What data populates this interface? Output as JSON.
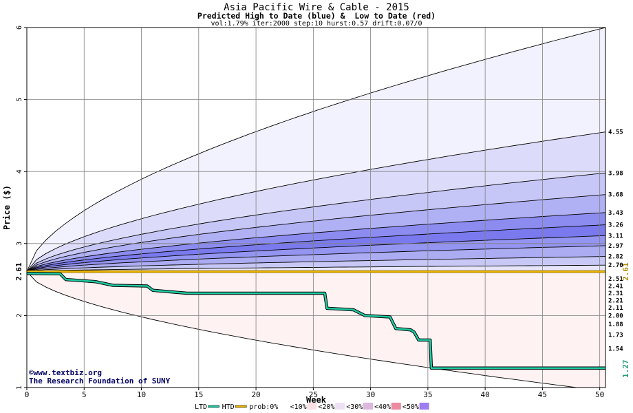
{
  "chart_data": {
    "type": "area",
    "title": "Asia Pacific Wire & Cable - 2015",
    "subtitle": "Predicted High to Date (blue) &  Low to Date (red)",
    "params_line": "vol:1.79% iter:2000 step:10 hurst:0.57 drift:0.07/0",
    "xlabel": "Week",
    "ylabel": "Price ($)",
    "xlim": [
      0,
      50.5
    ],
    "ylim": [
      1,
      6
    ],
    "x_ticks": [
      0,
      5,
      10,
      15,
      20,
      25,
      30,
      35,
      40,
      45,
      50
    ],
    "y_ticks": [
      1,
      2,
      3,
      4,
      5,
      6
    ],
    "grid": true,
    "start_price": 2.61,
    "start_price_label": "2.61",
    "last_ltd_label": "1.27",
    "right_price_label": "2.61",
    "high_bands": [
      {
        "end": 6.0,
        "fill": "#f2f2ff",
        "label": ""
      },
      {
        "end": 4.55,
        "fill": "#dcdcfa",
        "label": "4.55"
      },
      {
        "end": 3.98,
        "fill": "#c6c6f7",
        "label": "3.98"
      },
      {
        "end": 3.68,
        "fill": "#b0b0f4",
        "label": "3.68"
      },
      {
        "end": 3.43,
        "fill": "#8c8cf0",
        "label": "3.43"
      },
      {
        "end": 3.26,
        "fill": "#7a7aee",
        "label": "3.26"
      },
      {
        "end": 3.11,
        "fill": "#9494f1",
        "label": "3.11"
      },
      {
        "end": 2.97,
        "fill": "#acacf3",
        "label": "2.97"
      },
      {
        "end": 2.82,
        "fill": "#c8c8f6",
        "label": "2.82"
      },
      {
        "end": 2.7,
        "fill": "#e6e6fb",
        "label": "2.70"
      }
    ],
    "low_bands": [
      {
        "end": 2.51,
        "fill": "#fde6e6",
        "label": "2.51"
      },
      {
        "end": 2.41,
        "fill": "#fbcaca",
        "label": "2.41"
      },
      {
        "end": 2.31,
        "fill": "#f9aeae",
        "label": "2.31"
      },
      {
        "end": 2.21,
        "fill": "#f79494",
        "label": "2.21"
      },
      {
        "end": 2.11,
        "fill": "#f58a8a",
        "label": "2.11"
      },
      {
        "end": 2.0,
        "fill": "#f7a0a0",
        "label": "2.00"
      },
      {
        "end": 1.88,
        "fill": "#f9b8b8",
        "label": "1.88"
      },
      {
        "end": 1.73,
        "fill": "#fbcfcf",
        "label": "1.73"
      },
      {
        "end": 1.54,
        "fill": "#fde3e3",
        "label": "1.54"
      },
      {
        "end": 0.95,
        "fill": "#fff2f2",
        "label": ""
      }
    ],
    "htd_band": {
      "lo": 2.595,
      "hi": 2.625,
      "fill": "#e8b400"
    },
    "ltd_line": {
      "color": "#20c8a0",
      "x": [
        0,
        2.9,
        3.4,
        6,
        7.5,
        10.5,
        11,
        14,
        26,
        26.2,
        28.5,
        29.5,
        31.7,
        32.2,
        33.5,
        33.8,
        34.2,
        35.2,
        35.3,
        50.5
      ],
      "y": [
        2.585,
        2.58,
        2.5,
        2.47,
        2.42,
        2.41,
        2.35,
        2.31,
        2.31,
        2.1,
        2.08,
        2.0,
        1.98,
        1.82,
        1.8,
        1.77,
        1.66,
        1.66,
        1.27,
        1.27
      ]
    },
    "watermark": [
      "©www.textbiz.org",
      "The Research Foundation of SUNY"
    ],
    "legend": [
      {
        "label": "LTD",
        "color": "#20c8a0"
      },
      {
        "label": "HTD",
        "color": "#e8b400"
      },
      {
        "label": "prob:0%",
        "color": "#ffffff"
      },
      {
        "label": "<10%",
        "color": "#fbe0e6"
      },
      {
        "label": "<20%",
        "color": "#eee0f4"
      },
      {
        "label": "<30%",
        "color": "#dcb8dc"
      },
      {
        "label": "<40%",
        "color": "#ee8aa0"
      },
      {
        "label": "<50%",
        "color": "#9c7cf0"
      }
    ]
  }
}
